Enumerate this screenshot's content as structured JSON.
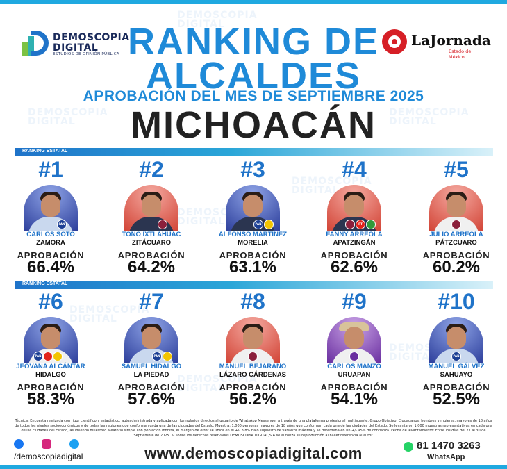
{
  "header": {
    "logo_left": {
      "line1": "DEMOSCOPIA",
      "line2": "DIGITAL",
      "tagline": "ESTUDIOS DE OPINIÓN PÚBLICA"
    },
    "logo_right": {
      "name": "LaJornada",
      "sub": "Estado de México"
    },
    "title_line1": "RANKING DE",
    "title_line2": "ALCALDES",
    "subtitle": "APROBACIÓN DEL MES DE SEPTIEMBRE 2025",
    "state": "MICHOACÁN"
  },
  "section_label": "RANKING ESTATAL",
  "approval_label": "APROBACIÓN",
  "mayors": [
    {
      "rank": "#1",
      "name": "CARLOS SOTO",
      "city": "ZAMORA",
      "approval": "66.4%"
    },
    {
      "rank": "#2",
      "name": "TOÑO IXTLÁHUAC",
      "city": "ZITÁCUARO",
      "approval": "64.2%"
    },
    {
      "rank": "#3",
      "name": "ALFONSO MARTÍNEZ",
      "city": "MORELIA",
      "approval": "63.1%"
    },
    {
      "rank": "#4",
      "name": "FANNY ARREOLA",
      "city": "APATZINGÁN",
      "approval": "62.6%"
    },
    {
      "rank": "#5",
      "name": "JULIO ARREOLA",
      "city": "PÁTZCUARO",
      "approval": "60.2%"
    },
    {
      "rank": "#6",
      "name": "JEOVANA ALCÁNTAR",
      "city": "HIDALGO",
      "approval": "58.3%"
    },
    {
      "rank": "#7",
      "name": "SAMUEL HIDALGO",
      "city": "LA PIEDAD",
      "approval": "57.6%"
    },
    {
      "rank": "#8",
      "name": "MANUEL BEJARANO",
      "city": "LÁZARO CÁRDENAS",
      "approval": "56.2%"
    },
    {
      "rank": "#9",
      "name": "CARLOS MANZO",
      "city": "URUAPAN",
      "approval": "54.1%"
    },
    {
      "rank": "#10",
      "name": "MANUEL GÁLVEZ",
      "city": "SAHUAYO",
      "approval": "52.5%"
    }
  ],
  "footer": {
    "note": "Técnica: Encuesta realizada con rigor científico y estadístico, autoadministrada y aplicada con formularios directos al usuario de WhatsApp Messenger a través de una plataforma profesional multiagente. Grupo Objetivo: Ciudadanos, hombres y mujeres, mayores de 18 años de todos los niveles socioeconómicos y de todas las regiones que conforman cada una de las ciudades del Estado. Muestra: 1,000 personas mayores de 18 años que conforman cada una de las ciudades del Estado. Se levantaron 1,000 muestras representativas en cada una de las ciudades del Estado, asumiendo muestreo aleatorio simple con población infinita, el margen de error se ubica en el +/- 3.8% bajo supuesto de varianza máxima y se determina en un +/- 95% de confianza. Fecha de levantamiento: Entre los días del 27 al 30 de Septiembre de 2025. © Todos los derechos reservados DEMOSCOPIA DIGITAL,S.A se autoriza su reproducción al hacer referencia al autor.",
    "social_handle": "/demoscopiadigital",
    "website": "www.demoscopiadigital.com",
    "phone": "81 1470 3263",
    "whatsapp": "WhatsApp"
  }
}
